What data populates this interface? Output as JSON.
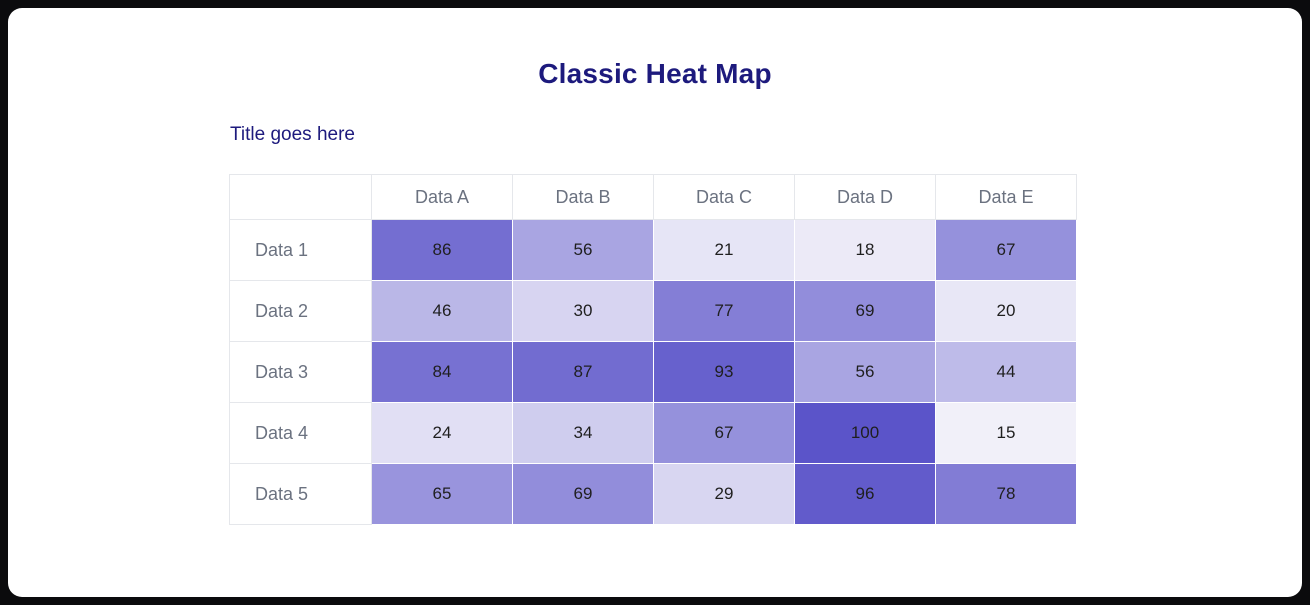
{
  "header": {
    "title": "Classic Heat Map",
    "subtitle": "Title goes here"
  },
  "chart_data": {
    "type": "heatmap",
    "title": "Classic Heat Map",
    "subtitle": "Title goes here",
    "columns": [
      "Data A",
      "Data B",
      "Data C",
      "Data D",
      "Data E"
    ],
    "rows": [
      "Data 1",
      "Data 2",
      "Data 3",
      "Data 4",
      "Data 5"
    ],
    "values": [
      [
        86,
        56,
        21,
        18,
        67
      ],
      [
        46,
        30,
        77,
        69,
        20
      ],
      [
        84,
        87,
        93,
        56,
        44
      ],
      [
        24,
        34,
        67,
        100,
        15
      ],
      [
        65,
        69,
        29,
        96,
        78
      ]
    ],
    "value_range": [
      15,
      100
    ],
    "legend": "none",
    "grid": "on",
    "colors": {
      "scale_min": "#f1f0f9",
      "scale_max": "#5b54c9",
      "title_text": "#1d1a7d",
      "axis_label_text": "#6b7280",
      "cell_value_text": "#1f1f1f",
      "grid_border": "#e5e7eb"
    }
  }
}
